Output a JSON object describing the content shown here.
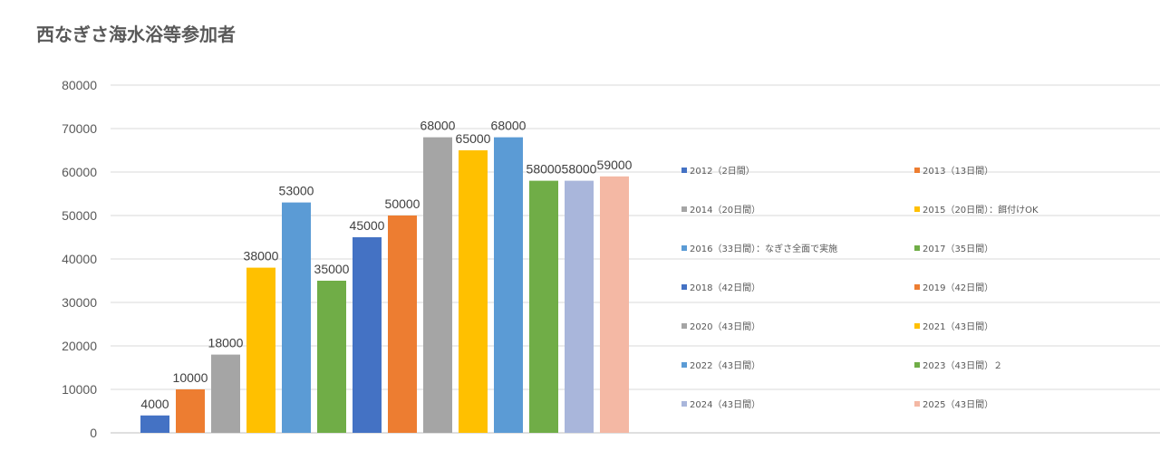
{
  "chart_data": {
    "type": "bar",
    "title": "西なぎさ海水浴等参加者",
    "ylim": [
      0,
      80000
    ],
    "y_ticks": [
      0,
      10000,
      20000,
      30000,
      40000,
      50000,
      60000,
      70000,
      80000
    ],
    "grid": true,
    "legend_position": "right",
    "series": [
      {
        "name": "2012（2日間）",
        "value": 4000,
        "color": "#4472C4"
      },
      {
        "name": "2013（13日間）",
        "value": 10000,
        "color": "#ED7D31"
      },
      {
        "name": "2014（20日間）",
        "value": 18000,
        "color": "#A5A5A5"
      },
      {
        "name": "2015（20日間）：餌付けOK",
        "value": 38000,
        "color": "#FFC000"
      },
      {
        "name": "2016（33日間）：なぎさ全面で実施",
        "value": 53000,
        "color": "#5B9BD5"
      },
      {
        "name": "2017（35日間）",
        "value": 35000,
        "color": "#70AD47"
      },
      {
        "name": "2018（42日間）",
        "value": 45000,
        "color": "#4472C4"
      },
      {
        "name": "2019（42日間）",
        "value": 50000,
        "color": "#ED7D31"
      },
      {
        "name": "2020（43日間）",
        "value": 68000,
        "color": "#A5A5A5"
      },
      {
        "name": "2021（43日間）",
        "value": 65000,
        "color": "#FFC000"
      },
      {
        "name": "2022（43日間）",
        "value": 68000,
        "color": "#5B9BD5"
      },
      {
        "name": "2023（43日間）２",
        "value": 58000,
        "color": "#70AD47"
      },
      {
        "name": "2024（43日間）",
        "value": 58000,
        "color": "#A9B6DB"
      },
      {
        "name": "2025（43日間）",
        "value": 59000,
        "color": "#F4B8A4"
      }
    ]
  }
}
